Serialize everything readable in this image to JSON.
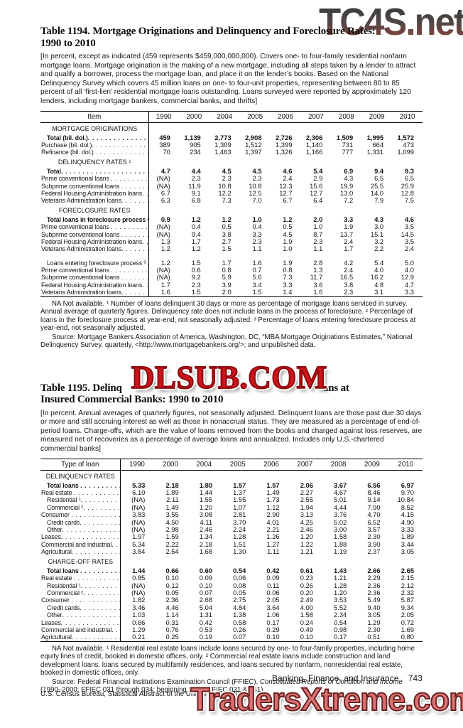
{
  "watermarks": {
    "top_right": "TC4S.net",
    "middle": "DLSUB.COM",
    "bottom_right": "TradersXtreme.com"
  },
  "leader": ". . . . . . . . . . . . . . . . . . . . . . . . . . . . . . . . . . . . . . . . . . . . . . . .",
  "table1194": {
    "title_line1": "Table 1194. Mortgage Originations and Delinquency and Foreclosure Rates:",
    "title_line2": "1990 to 2010",
    "intro": "[In percent, except as indicated (459 represents $459,000,000,000). Covers one- to four-family residential nonfarm mortgage loans. Mortgage origination is the making of a new mortgage, including all steps taken by a lender to attract and qualify a borrower, process the mortgage loan, and place it on the lender’s books. Based on the National Delinquency Survey which covers 45 million loans on one- to four-unit properties, representing between 80 to 85 percent of all ‘first-lien’ residential mortgage loans outstanding. Loans surveyed were reported by approximately 120 lenders, including mortgage bankers, commercial banks, and thrifts]",
    "columns": [
      "Item",
      "1990",
      "2000",
      "2004",
      "2005",
      "2006",
      "2007",
      "2008",
      "2009",
      "2010"
    ],
    "sections": [
      {
        "header": "MORTGAGE ORIGINATIONS",
        "rows": [
          {
            "label": "Total (bil. dol.)",
            "bold": true,
            "ind": 1,
            "values": [
              "459",
              "1,139",
              "2,773",
              "2,908",
              "2,726",
              "2,306",
              "1,509",
              "1,995",
              "1,572"
            ]
          },
          {
            "label": "Purchase (bil. dol.)",
            "values": [
              "389",
              "905",
              "1,309",
              "1,512",
              "1,399",
              "1,140",
              "731",
              "664",
              "473"
            ]
          },
          {
            "label": "Refinance (bil. dol.) ",
            "values": [
              "70",
              "234",
              "1,463",
              "1,397",
              "1,326",
              "1,166",
              "777",
              "1,331",
              "1,099"
            ]
          }
        ]
      },
      {
        "header": "DELINQUENCY RATES ¹",
        "rows": [
          {
            "label": "Total",
            "bold": true,
            "ind": 1,
            "values": [
              "4.7",
              "4.4",
              "4.5",
              "4.5",
              "4.6",
              "5.4",
              "6.9",
              "9.4",
              "9.3"
            ]
          },
          {
            "label": "Prime conventional loans ",
            "values": [
              "(NA)",
              "2.3",
              "2.3",
              "2.3",
              "2.4",
              "2.9",
              "4.3",
              "6.5",
              "6.5"
            ]
          },
          {
            "label": "Subprime conventional loans ",
            "values": [
              "(NA)",
              "11.9",
              "10.8",
              "10.8",
              "12.3",
              "15.6",
              "19.9",
              "25.5",
              "25.9"
            ]
          },
          {
            "label": "Federal Housing Administration loans",
            "values": [
              "6.7",
              "9.1",
              "12.2",
              "12.5",
              "12.7",
              "12.7",
              "13.0",
              "14.0",
              "12.8"
            ]
          },
          {
            "label": "Veterans Administration loans",
            "values": [
              "6.3",
              "6.8",
              "7.3",
              "7.0",
              "6.7",
              "6.4",
              "7.2",
              "7.9",
              "7.5"
            ]
          }
        ]
      },
      {
        "header": "FORECLOSURE RATES",
        "rows": [
          {
            "label": "Total loans in foreclosure process ²",
            "bold": true,
            "ind": 1,
            "values": [
              "0.9",
              "1.2",
              "1.2",
              "1.0",
              "1.2",
              "2.0",
              "3.3",
              "4.3",
              "4.6"
            ]
          },
          {
            "label": "Prime conventional loans ",
            "values": [
              "(NA)",
              "0.4",
              "0.5",
              "0.4",
              "0.5",
              "1.0",
              "1.9",
              "3.0",
              "3.5"
            ]
          },
          {
            "label": "Subprime conventional loans ",
            "values": [
              "(NA)",
              "9.4",
              "3.8",
              "3.3",
              "4.5",
              "8.7",
              "13.7",
              "15.1",
              "14.5"
            ]
          },
          {
            "label": "Federal Housing Administration loans",
            "values": [
              "1.3",
              "1.7",
              "2.7",
              "2.3",
              "1.9",
              "2.3",
              "2.4",
              "3.2",
              "3.5"
            ]
          },
          {
            "label": "Veterans Administration loans",
            "values": [
              "1.2",
              "1.2",
              "1.5",
              "1.1",
              "1.0",
              "1.1",
              "1.7",
              "2.2",
              "2.4"
            ]
          },
          {
            "label": "Loans entering foreclosure process ³ ",
            "ind": 1,
            "gap": true,
            "values": [
              "1.2",
              "1.5",
              "1.7",
              "1.6",
              "1.9",
              "2.8",
              "4.2",
              "5.4",
              "5.0"
            ]
          },
          {
            "label": "Prime conventional loans ",
            "values": [
              "(NA)",
              "0.6",
              "0.8",
              "0.7",
              "0.8",
              "1.3",
              "2.4",
              "4.0",
              "4.0"
            ]
          },
          {
            "label": "Subprime conventional loans ",
            "values": [
              "(NA)",
              "9.2",
              "5.9",
              "5.6",
              "7.3",
              "11.7",
              "16.5",
              "16.2",
              "12.9"
            ]
          },
          {
            "label": "Federal Housing Administration loans",
            "values": [
              "1.7",
              "2.3",
              "3.9",
              "3.4",
              "3.3",
              "3.6",
              "3.8",
              "4.8",
              "4.7"
            ]
          },
          {
            "label": "Veterans Administration loans",
            "values": [
              "1.6",
              "1.5",
              "2.0",
              "1.5",
              "1.4",
              "1.6",
              "2.3",
              "3.1",
              "3.3"
            ]
          }
        ]
      }
    ],
    "footnote": "NA Not available. ¹ Number of loans delinquent 30 days or more as percentage of mortgage loans serviced in survey. Annual average of quarterly figures. Delinquency rate does not include loans in the process of foreclosure. ² Percentage of loans in the foreclosure process at year-end, not seasonally adjusted. ³ Percentage of loans entering foreclosure process at year-end, not seasonally adjusted.",
    "source": "Source: Mortgage Bankers Association of America, Washington, DC, “MBA Mortgage Originations Estimates,” National Delinquency Survey, quarterly, <http://www.mortgagebankers.org/>; and unpublished data."
  },
  "table1195": {
    "title_line1_prefix": "Table 1195. Delinq",
    "title_line1_suffix": "ans at",
    "title_line2": "Insured Commercial Banks: 1990 to 2010",
    "intro": "[In percent. Annual averages of quarterly figures, not seasonally adjusted. Delinquent loans are those past due 30 days or more and still accruing interest as well as those in nonaccrual status. They are measured as a percentage of end-of-period loans. Charge-offs, which are the value of loans removed from the books and charged against loss reserves, are measured net of recoveries as a percentage of average loans and annualized. Includes only U.S.-chartered commercial banks]",
    "columns": [
      "Type of loan",
      "1990",
      "2000",
      "2004",
      "2005",
      "2006",
      "2007",
      "2008",
      "2009",
      "2010"
    ],
    "sections": [
      {
        "header": "DELINQUENCY RATES",
        "rows": [
          {
            "label": "Total loans ",
            "bold": true,
            "ind": 1,
            "values": [
              "5.33",
              "2.18",
              "1.80",
              "1.57",
              "1.57",
              "2.06",
              "3.67",
              "6.56",
              "6.97"
            ]
          },
          {
            "label": "Real estate ",
            "values": [
              "6.10",
              "1.89",
              "1.44",
              "1.37",
              "1.49",
              "2.27",
              "4.67",
              "8.46",
              "9.70"
            ]
          },
          {
            "label": "Residential ¹",
            "ind": 1,
            "values": [
              "(NA)",
              "2.11",
              "1.55",
              "1.55",
              "1.73",
              "2.55",
              "5.01",
              "9.14",
              "10.84"
            ]
          },
          {
            "label": "Commercial ²",
            "ind": 1,
            "values": [
              "(NA)",
              "1.49",
              "1.20",
              "1.07",
              "1.12",
              "1.94",
              "4.44",
              "7.90",
              "8.52"
            ]
          },
          {
            "label": "Consumer ",
            "values": [
              "3.83",
              "3.55",
              "3.08",
              "2.81",
              "2.90",
              "3.13",
              "3.76",
              "4.70",
              "4.15"
            ]
          },
          {
            "label": "Credit cards",
            "ind": 1,
            "values": [
              "(NA)",
              "4.50",
              "4.11",
              "3.70",
              "4.01",
              "4.25",
              "5.02",
              "6.52",
              "4.90"
            ]
          },
          {
            "label": "Other",
            "ind": 1,
            "values": [
              "(NA)",
              "2.98",
              "2.46",
              "2.24",
              "2.21",
              "2.46",
              "3.00",
              "3.57",
              "3.33"
            ]
          },
          {
            "label": "Leases",
            "values": [
              "1.97",
              "1.59",
              "1.34",
              "1.28",
              "1.26",
              "1.20",
              "1.58",
              "2.30",
              "1.89"
            ]
          },
          {
            "label": "Commercial and industrial",
            "values": [
              "5.34",
              "2.22",
              "2.18",
              "1.51",
              "1.27",
              "1.22",
              "1.88",
              "3.90",
              "3.44"
            ]
          },
          {
            "label": "Agricultural",
            "values": [
              "3.84",
              "2.54",
              "1.68",
              "1.30",
              "1.11",
              "1.21",
              "1.19",
              "2.37",
              "3.05"
            ]
          }
        ]
      },
      {
        "header": "CHARGE-OFF RATES",
        "rows": [
          {
            "label": "Total loans ",
            "bold": true,
            "ind": 1,
            "values": [
              "1.44",
              "0.66",
              "0.60",
              "0.54",
              "0.42",
              "0.61",
              "1.43",
              "2.66",
              "2.65"
            ]
          },
          {
            "label": "Real estate ",
            "values": [
              "0.85",
              "0.10",
              "0.09",
              "0.06",
              "0.09",
              "0.23",
              "1.21",
              "2.29",
              "2.15"
            ]
          },
          {
            "label": "Residential ¹",
            "ind": 1,
            "values": [
              "(NA)",
              "0.12",
              "0.10",
              "0.08",
              "0.11",
              "0.26",
              "1.28",
              "2.36",
              "2.12"
            ]
          },
          {
            "label": "Commercial ²",
            "ind": 1,
            "values": [
              "(NA)",
              "0.05",
              "0.07",
              "0.05",
              "0.06",
              "0.20",
              "1.20",
              "2.36",
              "2.32"
            ]
          },
          {
            "label": "Consumer ",
            "values": [
              "1.82",
              "2.36",
              "2.68",
              "2.75",
              "2.05",
              "2.49",
              "3.53",
              "5.49",
              "5.87"
            ]
          },
          {
            "label": "Credit cards",
            "ind": 1,
            "values": [
              "3.46",
              "4.46",
              "5.04",
              "4.84",
              "3.64",
              "4.00",
              "5.52",
              "9.40",
              "9.34"
            ]
          },
          {
            "label": "Other",
            "ind": 1,
            "values": [
              "1.03",
              "1.14",
              "1.31",
              "1.38",
              "1.06",
              "1.58",
              "2.34",
              "3.05",
              "2.05"
            ]
          },
          {
            "label": "Leases",
            "values": [
              "0.66",
              "0.31",
              "0.42",
              "0.58",
              "0.17",
              "0.24",
              "0.54",
              "1.29",
              "0.72"
            ]
          },
          {
            "label": "Commercial and industrial",
            "values": [
              "1.29",
              "0.76",
              "0.53",
              "0.26",
              "0.29",
              "0.49",
              "0.98",
              "2.30",
              "1.69"
            ]
          },
          {
            "label": "Agricultural",
            "values": [
              "0.21",
              "0.25",
              "0.19",
              "0.07",
              "0.10",
              "0.10",
              "0.17",
              "0.51",
              "0.80"
            ]
          }
        ]
      }
    ],
    "footnote": "NA Not available. ¹ Residential real estate loans include loans secured by one- to four-family properties, including home equity lines of credit, booked in domestic offices, only. ² Commercial real estate loans include construction and land development loans, loans secured by multifamily residences, and loans secured by nonfarm, nonresidential real estate, booked in domestic offices, only.",
    "source_prefix": "Source: Federal Financial Institutions Examination Council (FFIEC), ",
    "source_italic": "Consolidated Reports of Condition and Income",
    "source_suffix": " (1990–2000: FFIEC 031 through 034; beginning 2004: FFIEC 031 & 041)."
  },
  "footer": {
    "chapter": "Banking, Finance, and Insurance",
    "page_number": "743",
    "census_line": "U.S. Census Bureau, Statistical Abstract of the United States: 2012"
  }
}
